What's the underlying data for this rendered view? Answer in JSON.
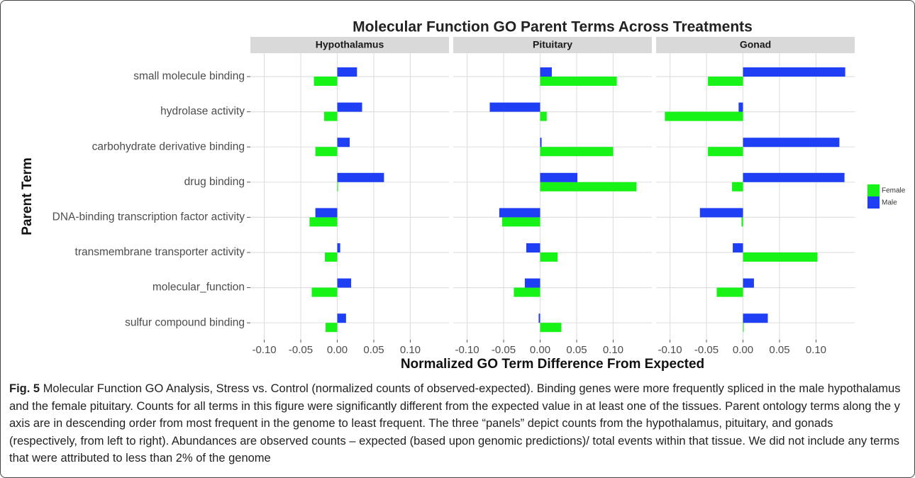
{
  "chart_data": {
    "type": "bar",
    "orientation": "horizontal",
    "title": "Molecular Function GO Parent Terms Across Treatments",
    "x_label": "Normalized GO Term Difference From Expected",
    "y_label": "Parent Term",
    "panels": [
      "Hypothalamus",
      "Pituitary",
      "Gonad"
    ],
    "categories": [
      "small molecule binding",
      "hydrolase activity",
      "carbohydrate derivative binding",
      "drug binding",
      "DNA-binding transcription factor activity",
      "transmembrane transporter activity",
      "molecular_function",
      "sulfur compound binding"
    ],
    "series": [
      {
        "name": "Female",
        "color": "#17f217",
        "values": [
          [
            -0.032,
            -0.018,
            -0.03,
            0.001,
            -0.038,
            -0.017,
            -0.035,
            -0.016
          ],
          [
            0.105,
            0.009,
            0.1,
            0.132,
            -0.052,
            0.024,
            -0.036,
            0.029
          ],
          [
            -0.048,
            -0.107,
            -0.048,
            -0.015,
            -0.002,
            0.102,
            -0.036,
            0.001
          ]
        ]
      },
      {
        "name": "Male",
        "color": "#1f3ff5",
        "values": [
          [
            0.027,
            0.034,
            0.017,
            0.064,
            -0.03,
            0.004,
            0.019,
            0.012
          ],
          [
            0.016,
            -0.069,
            0.002,
            0.051,
            -0.056,
            -0.019,
            -0.021,
            -0.002
          ],
          [
            0.14,
            -0.006,
            0.132,
            0.139,
            -0.059,
            -0.014,
            0.015,
            0.034
          ]
        ]
      }
    ],
    "xlim": [
      -0.119,
      0.153
    ],
    "xticks": [
      {
        "value": -0.1,
        "label": "-0.10"
      },
      -0.05,
      {
        "value": 0,
        "label": "0.00"
      },
      0.05,
      {
        "value": 0.1,
        "label": "0.10"
      }
    ],
    "grid": true,
    "legend": "right"
  },
  "caption": {
    "label": "Fig. 5",
    "text": "Molecular Function GO Analysis, Stress vs. Control (normalized counts of observed-expected). Binding genes were more frequently spliced in the male hypothalamus and the female pituitary. Counts for all terms in this figure were significantly different from the expected value in at least one of the tissues. Parent ontology terms along the y axis are in descending order from most frequent in the genome to least frequent. The three “panels” depict counts from the hypothalamus, pituitary, and gonads (respectively, from left to right). Abundances are observed counts – expected (based upon genomic predictions)/ total events within that tissue. We did not include any terms that were attributed to less than 2% of the genome"
  }
}
